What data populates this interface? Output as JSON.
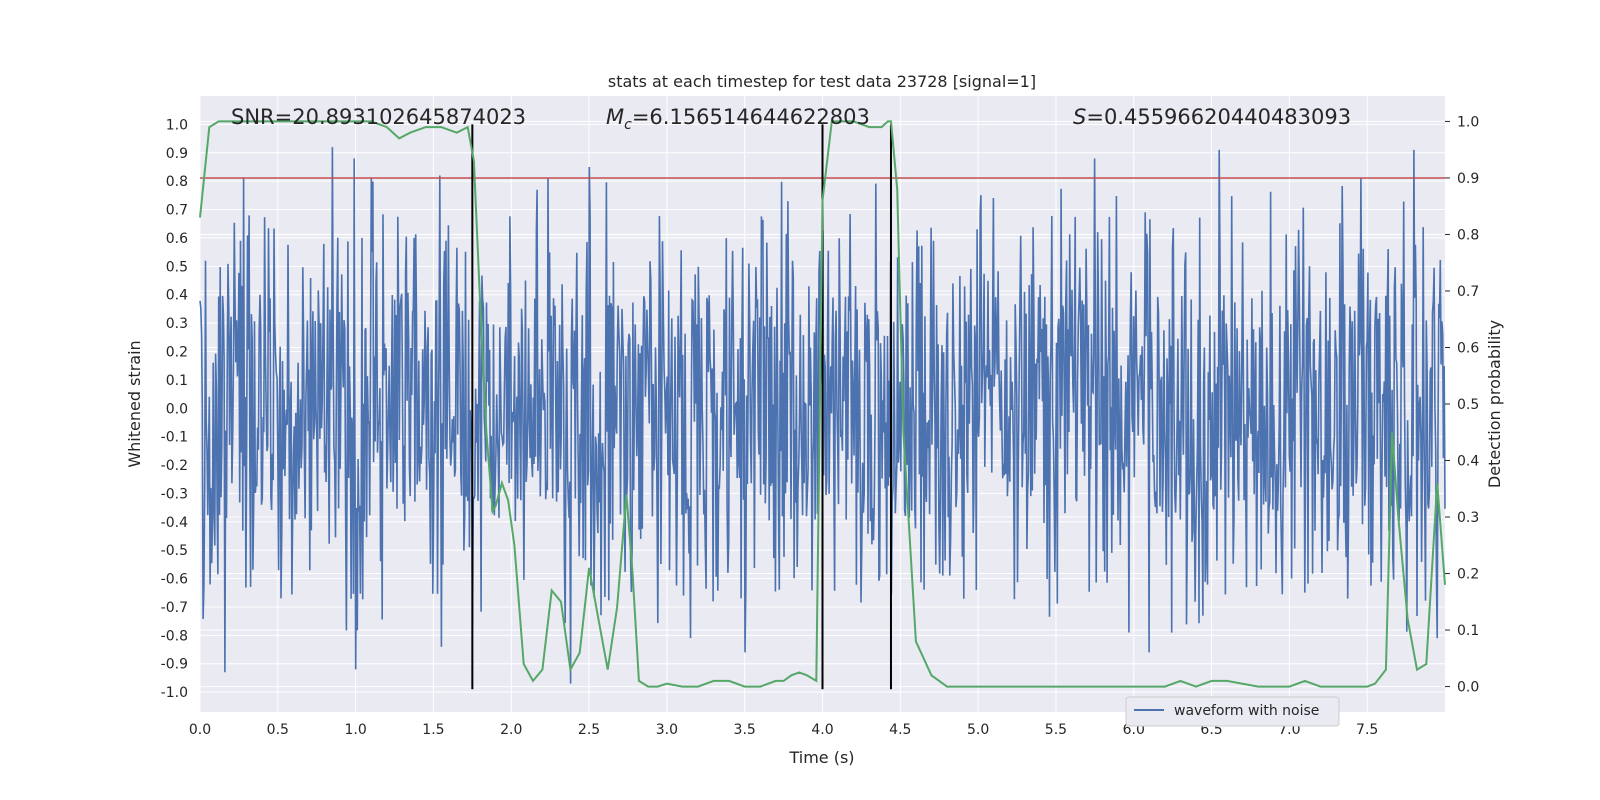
{
  "chart_data": {
    "type": "line",
    "title": "stats at each timestep for test data 23728 [signal=1]",
    "xlabel": "Time (s)",
    "ylabel": "Whitened strain",
    "y2label": "Detection probability",
    "xlim": [
      0.0,
      8.0
    ],
    "ylim": [
      -1.07,
      1.1
    ],
    "y2lim": [
      -0.045,
      1.045
    ],
    "x_ticks": [
      "0.0",
      "0.5",
      "1.0",
      "1.5",
      "2.0",
      "2.5",
      "3.0",
      "3.5",
      "4.0",
      "4.5",
      "5.0",
      "5.5",
      "6.0",
      "6.5",
      "7.0",
      "7.5"
    ],
    "y_ticks": [
      "-1.0",
      "-0.9",
      "-0.8",
      "-0.7",
      "-0.6",
      "-0.5",
      "-0.4",
      "-0.3",
      "-0.2",
      "-0.1",
      "0.0",
      "0.1",
      "0.2",
      "0.3",
      "0.4",
      "0.5",
      "0.6",
      "0.7",
      "0.8",
      "0.9",
      "1.0"
    ],
    "y2_ticks": [
      "0.0",
      "0.1",
      "0.2",
      "0.3",
      "0.4",
      "0.5",
      "0.6",
      "0.7",
      "0.8",
      "0.9",
      "1.0"
    ],
    "annotations": {
      "snr": "SNR=20.893102645874023",
      "mc_symbol": "M",
      "mc_sub": "c",
      "mc_value": "=6.156514644622803",
      "s_symbol": "S",
      "s_value": "=0.45596620440483093"
    },
    "threshold": {
      "axis": "right",
      "value": 0.9,
      "color": "#c44e52"
    },
    "vertical_lines": [
      1.75,
      4.0,
      4.44
    ],
    "vertical_line_range": [
      -0.99,
      1.0
    ],
    "waveform": {
      "name": "waveform with noise",
      "color": "#4c72b0",
      "duration": 8.0,
      "samples": 1600,
      "core_amplitude": 0.4,
      "spike_peaks": [
        {
          "t": 0.28,
          "v": 0.81
        },
        {
          "t": 0.85,
          "v": 0.92
        },
        {
          "t": 0.99,
          "v": 0.88
        },
        {
          "t": 1.1,
          "v": 0.81
        },
        {
          "t": 1.54,
          "v": 0.82
        },
        {
          "t": 2.5,
          "v": 0.85
        },
        {
          "t": 5.75,
          "v": 0.88
        },
        {
          "t": 6.55,
          "v": 0.91
        },
        {
          "t": 7.8,
          "v": 0.91
        },
        {
          "t": 1.0,
          "v": -0.92
        },
        {
          "t": 0.16,
          "v": -0.93
        },
        {
          "t": 2.38,
          "v": -0.97
        },
        {
          "t": 3.5,
          "v": -0.86
        },
        {
          "t": 6.1,
          "v": -0.86
        },
        {
          "t": 1.55,
          "v": -0.84
        },
        {
          "t": 7.95,
          "v": -0.81
        }
      ]
    },
    "probability": {
      "name": "detection probability",
      "color": "#55a868",
      "x": [
        0.0,
        0.06,
        0.12,
        0.2,
        0.3,
        0.5,
        0.7,
        0.9,
        1.1,
        1.2,
        1.28,
        1.35,
        1.45,
        1.55,
        1.65,
        1.72,
        1.76,
        1.8,
        1.84,
        1.88,
        1.9,
        1.94,
        1.98,
        2.02,
        2.08,
        2.14,
        2.2,
        2.26,
        2.32,
        2.38,
        2.44,
        2.5,
        2.56,
        2.62,
        2.68,
        2.74,
        2.78,
        2.82,
        2.88,
        2.94,
        3.0,
        3.1,
        3.2,
        3.3,
        3.4,
        3.5,
        3.6,
        3.7,
        3.75,
        3.8,
        3.85,
        3.9,
        3.96,
        4.0,
        4.06,
        4.12,
        4.2,
        4.3,
        4.38,
        4.42,
        4.44,
        4.48,
        4.52,
        4.6,
        4.7,
        4.8,
        4.9,
        5.0,
        5.2,
        5.5,
        5.8,
        6.1,
        6.2,
        6.3,
        6.4,
        6.5,
        6.6,
        6.8,
        7.0,
        7.1,
        7.2,
        7.3,
        7.4,
        7.5,
        7.55,
        7.62,
        7.66,
        7.7,
        7.76,
        7.82,
        7.88,
        7.95,
        8.0
      ],
      "y": [
        0.83,
        0.99,
        1.0,
        1.0,
        1.0,
        1.0,
        1.0,
        1.0,
        1.0,
        0.99,
        0.97,
        0.98,
        0.99,
        0.99,
        0.98,
        0.99,
        0.93,
        0.68,
        0.45,
        0.31,
        0.32,
        0.36,
        0.33,
        0.25,
        0.04,
        0.01,
        0.03,
        0.17,
        0.15,
        0.03,
        0.06,
        0.21,
        0.12,
        0.03,
        0.14,
        0.34,
        0.2,
        0.01,
        0.0,
        0.0,
        0.005,
        0.0,
        0.0,
        0.01,
        0.01,
        0.0,
        0.0,
        0.01,
        0.01,
        0.02,
        0.025,
        0.02,
        0.01,
        0.86,
        1.0,
        1.0,
        1.0,
        0.99,
        0.99,
        1.0,
        1.0,
        0.88,
        0.45,
        0.08,
        0.02,
        0.0,
        0.0,
        0.0,
        0.0,
        0.0,
        0.0,
        0.0,
        0.0,
        0.01,
        0.0,
        0.01,
        0.01,
        0.0,
        0.0,
        0.01,
        0.0,
        0.0,
        0.0,
        0.0,
        0.005,
        0.03,
        0.45,
        0.3,
        0.12,
        0.03,
        0.04,
        0.36,
        0.18
      ]
    },
    "legend": {
      "placement": "lower-center-right",
      "entry": "waveform with noise"
    },
    "grid": true
  }
}
